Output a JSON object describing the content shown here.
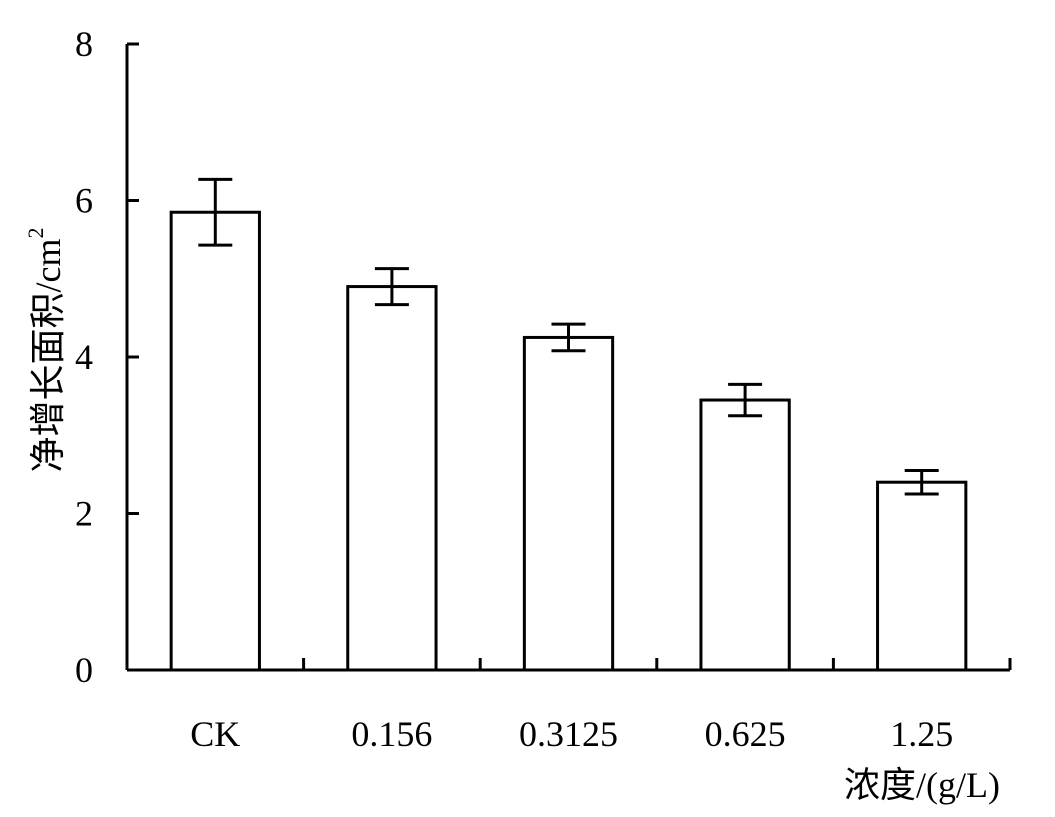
{
  "chart_data": {
    "type": "bar",
    "categories": [
      "CK",
      "0.156",
      "0.3125",
      "0.625",
      "1.25"
    ],
    "values": [
      5.85,
      4.9,
      4.25,
      3.45,
      2.4
    ],
    "error": [
      0.42,
      0.23,
      0.17,
      0.2,
      0.15
    ],
    "xlabel": "浓度/(g/L)",
    "ylabel": "净增长面积/cm",
    "ylabel_superscript": "2",
    "ylim": [
      0,
      8
    ],
    "yticks": [
      "0",
      "2",
      "4",
      "6",
      "8"
    ],
    "grid": false,
    "legend": "none",
    "bar_fill": "#ffffff",
    "stroke_color": "#000000"
  }
}
